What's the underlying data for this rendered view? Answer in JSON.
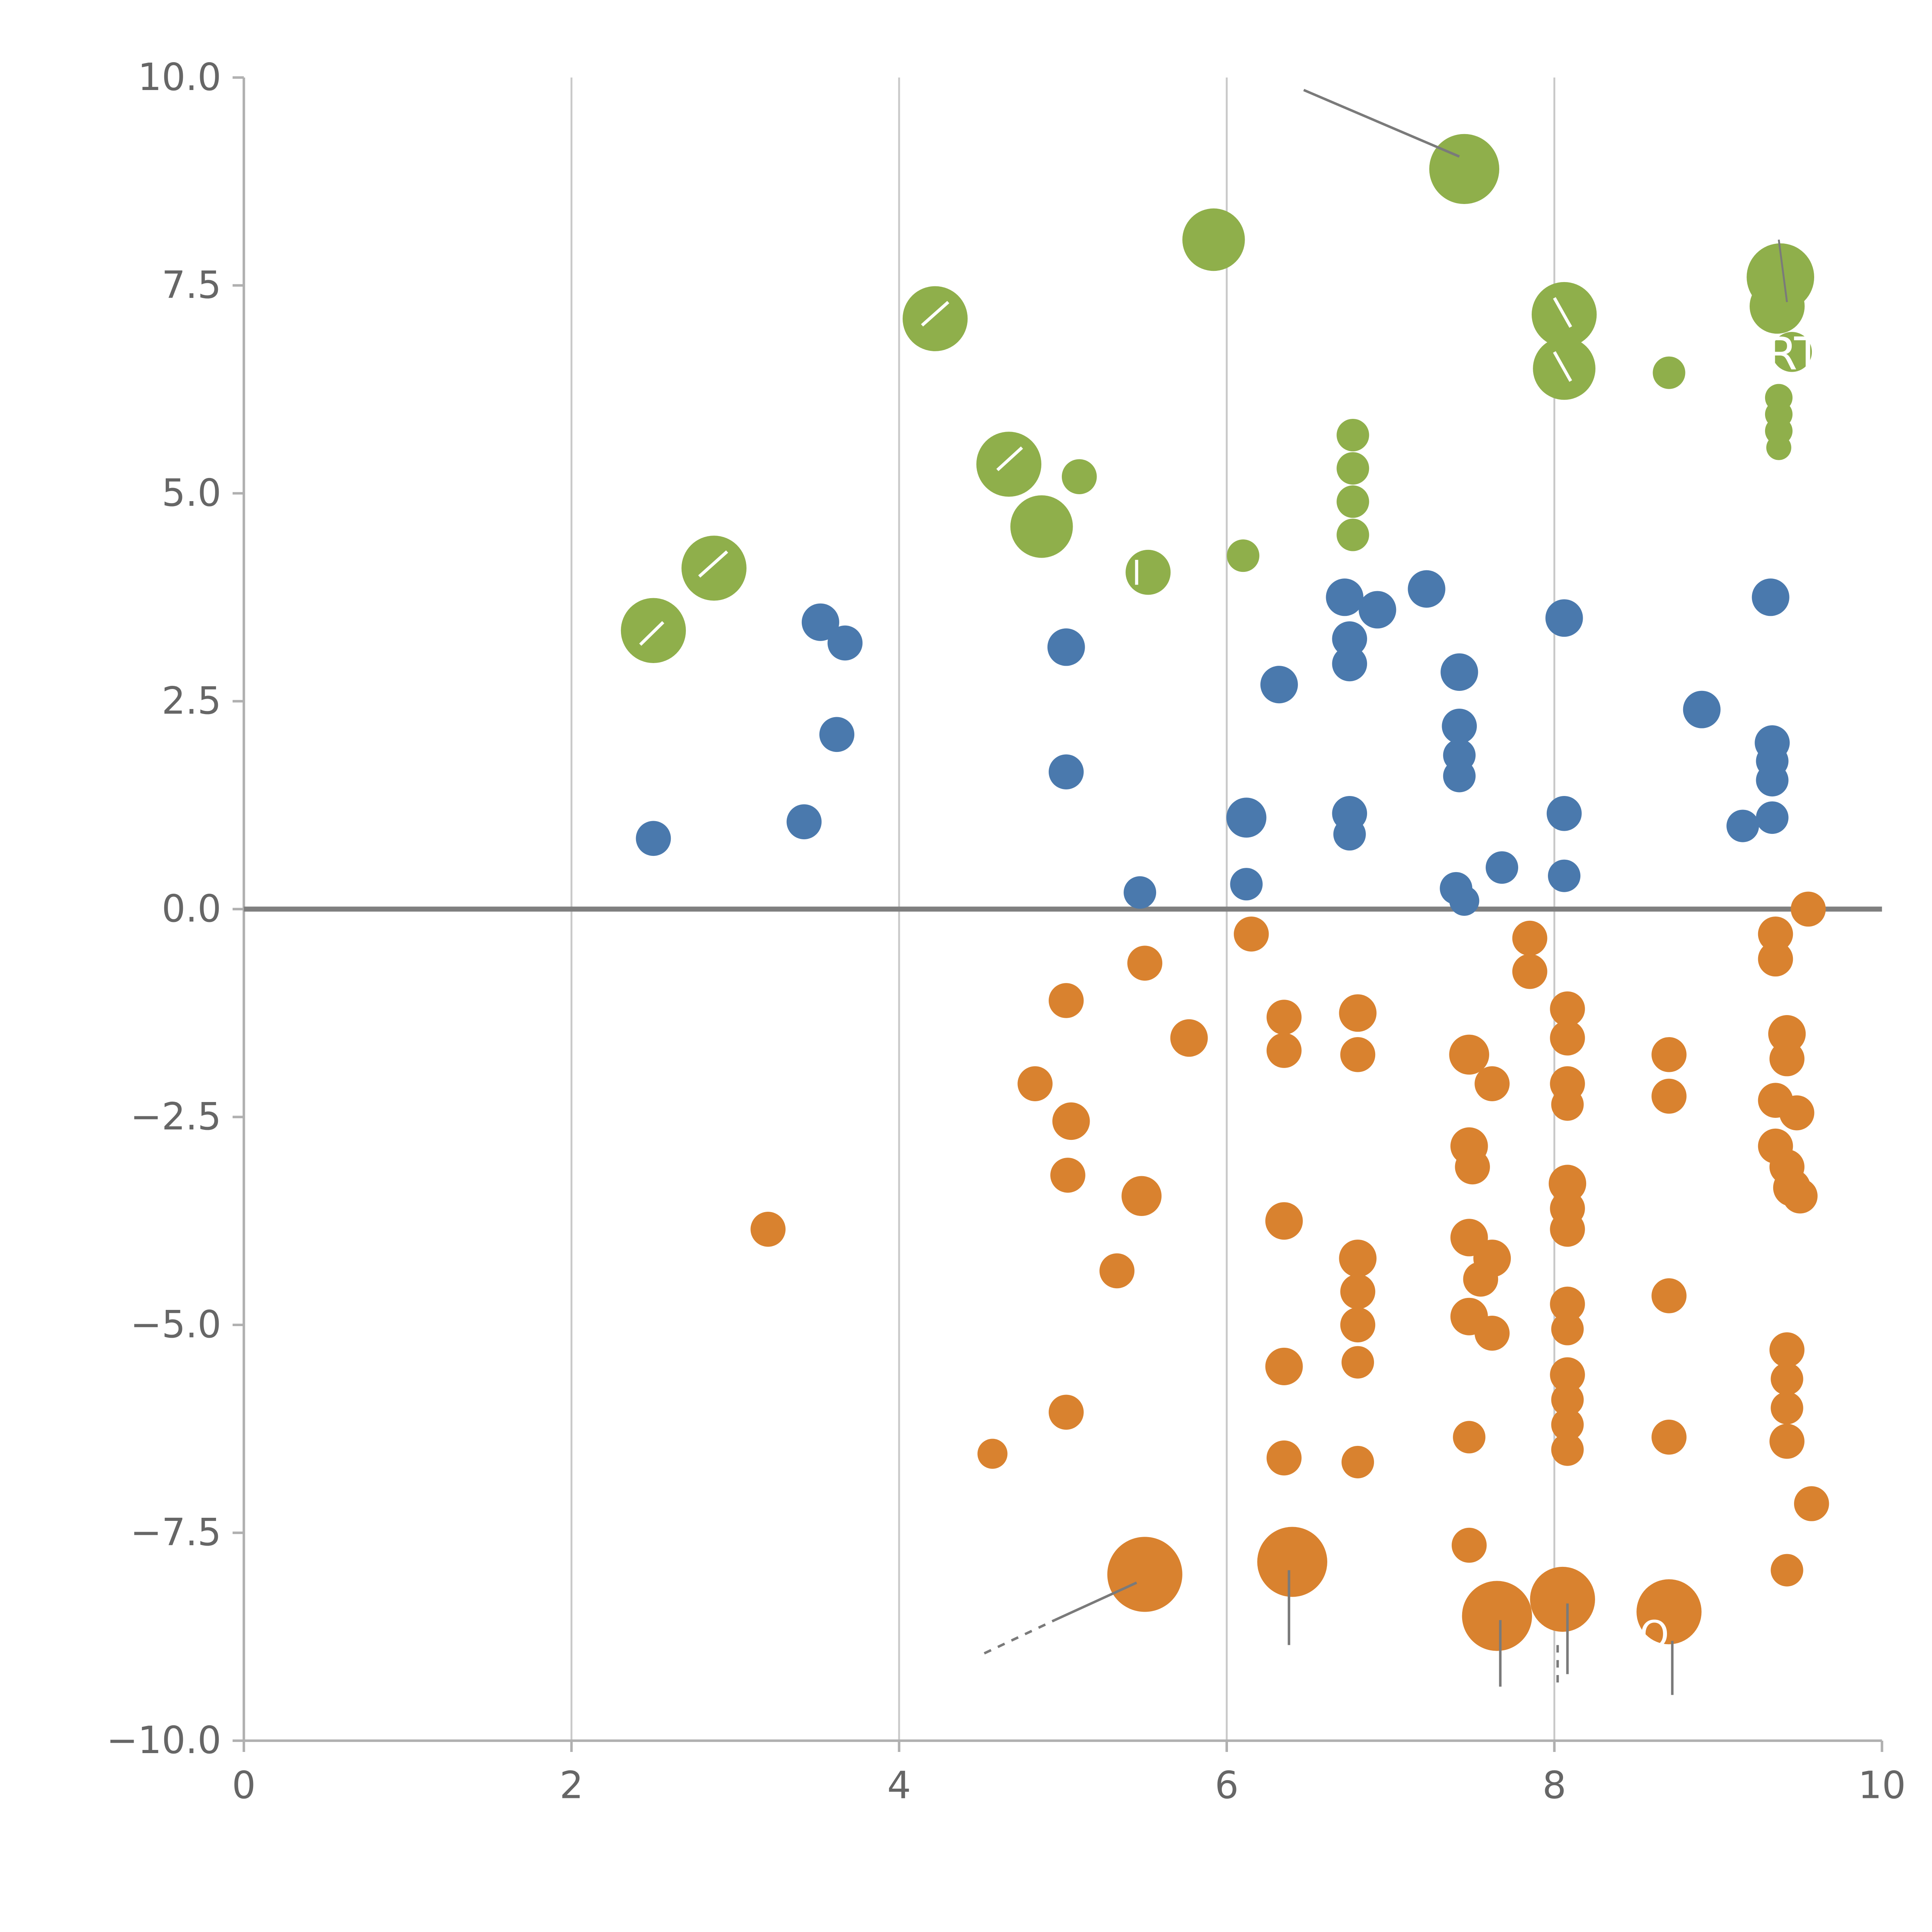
{
  "chart_data": {
    "type": "scatter",
    "title": "",
    "xlabel": "",
    "ylabel": "",
    "xlim": [
      0,
      10
    ],
    "ylim": [
      -10,
      10
    ],
    "x_tick_values": [
      0,
      2,
      4,
      6,
      8,
      10
    ],
    "x_tick_labels": [
      "0",
      "2",
      "4",
      "6",
      "8",
      "10"
    ],
    "y_tick_values": [
      10,
      7.5,
      5,
      2.5,
      0,
      -2.5,
      -5,
      -7.5,
      -10
    ],
    "y_tick_labels": [
      "10.0",
      "7.5",
      "5.0",
      "2.5",
      "0.0",
      "−2.5",
      "−5.0",
      "−7.5",
      "−10.0"
    ],
    "grid_vertical_at": [
      2,
      4,
      6,
      8
    ],
    "zero_line_y": 0,
    "legend": "none",
    "colors": {
      "green": "#8FAF4B",
      "blue": "#4A79AD",
      "orange": "#D9822F",
      "grid": "#c9c9c9",
      "spine": "#b0b0b0",
      "zero_line": "#7f7f7f",
      "tick_label": "#666666",
      "annotation_line": "#7a7a7a",
      "white": "#ffffff"
    },
    "series": [
      {
        "name": "green",
        "color_key": "green",
        "points": [
          [
            7.45,
            8.9,
            28
          ],
          [
            5.92,
            8.05,
            25
          ],
          [
            4.22,
            7.1,
            26
          ],
          [
            9.38,
            7.6,
            27
          ],
          [
            9.36,
            7.25,
            22
          ],
          [
            8.06,
            7.15,
            26
          ],
          [
            8.06,
            6.5,
            25
          ],
          [
            8.7,
            6.45,
            13
          ],
          [
            9.45,
            6.7,
            16
          ],
          [
            9.37,
            6.15,
            11
          ],
          [
            9.37,
            5.95,
            11
          ],
          [
            9.37,
            5.75,
            11
          ],
          [
            9.37,
            5.55,
            10
          ],
          [
            4.67,
            5.35,
            26
          ],
          [
            5.1,
            5.2,
            14
          ],
          [
            4.87,
            4.6,
            25
          ],
          [
            2.87,
            4.1,
            26
          ],
          [
            2.5,
            3.35,
            26
          ],
          [
            5.52,
            4.05,
            18
          ],
          [
            6.1,
            4.25,
            13
          ],
          [
            6.77,
            5.7,
            13
          ],
          [
            6.77,
            5.3,
            13
          ],
          [
            6.77,
            4.9,
            13
          ],
          [
            6.77,
            4.5,
            13
          ]
        ]
      },
      {
        "name": "blue",
        "color_key": "blue",
        "points": [
          [
            2.5,
            0.85,
            14
          ],
          [
            3.42,
            1.05,
            14
          ],
          [
            3.52,
            3.45,
            15
          ],
          [
            3.67,
            3.2,
            14
          ],
          [
            3.62,
            2.1,
            14
          ],
          [
            5.02,
            3.15,
            15
          ],
          [
            5.02,
            1.65,
            14
          ],
          [
            5.47,
            0.2,
            13
          ],
          [
            6.12,
            1.1,
            16
          ],
          [
            6.12,
            0.3,
            13
          ],
          [
            6.32,
            2.7,
            15
          ],
          [
            6.72,
            3.75,
            15
          ],
          [
            6.92,
            3.6,
            15
          ],
          [
            7.22,
            3.85,
            15
          ],
          [
            6.75,
            3.25,
            14
          ],
          [
            6.75,
            2.95,
            14
          ],
          [
            6.75,
            1.15,
            14
          ],
          [
            6.75,
            0.9,
            13
          ],
          [
            7.42,
            2.85,
            15
          ],
          [
            7.42,
            2.2,
            14
          ],
          [
            7.42,
            1.85,
            13
          ],
          [
            7.42,
            1.6,
            13
          ],
          [
            7.4,
            0.25,
            13
          ],
          [
            7.45,
            0.1,
            12
          ],
          [
            7.68,
            0.5,
            13
          ],
          [
            8.06,
            3.5,
            15
          ],
          [
            8.06,
            1.15,
            14
          ],
          [
            8.06,
            0.4,
            13
          ],
          [
            8.9,
            2.4,
            15
          ],
          [
            9.32,
            3.75,
            15
          ],
          [
            9.33,
            2.0,
            14
          ],
          [
            9.33,
            1.78,
            13
          ],
          [
            9.33,
            1.55,
            13
          ],
          [
            9.33,
            1.1,
            13
          ],
          [
            9.15,
            1.0,
            13
          ]
        ]
      },
      {
        "name": "orange",
        "color_key": "orange",
        "points": [
          [
            3.2,
            -3.85,
            14
          ],
          [
            4.57,
            -6.55,
            12
          ],
          [
            4.83,
            -2.1,
            14
          ],
          [
            5.02,
            -1.1,
            14
          ],
          [
            5.05,
            -2.55,
            15
          ],
          [
            5.03,
            -3.2,
            14
          ],
          [
            5.02,
            -6.05,
            14
          ],
          [
            5.33,
            -4.35,
            14
          ],
          [
            5.5,
            -0.65,
            14
          ],
          [
            5.48,
            -3.45,
            16
          ],
          [
            5.77,
            -1.55,
            15
          ],
          [
            5.5,
            -8.0,
            30
          ],
          [
            6.15,
            -0.3,
            14
          ],
          [
            6.35,
            -1.3,
            14
          ],
          [
            6.35,
            -1.7,
            14
          ],
          [
            6.35,
            -3.75,
            15
          ],
          [
            6.35,
            -5.5,
            15
          ],
          [
            6.35,
            -6.6,
            14
          ],
          [
            6.4,
            -7.85,
            28
          ],
          [
            6.8,
            -1.25,
            15
          ],
          [
            6.8,
            -1.75,
            14
          ],
          [
            6.8,
            -4.2,
            15
          ],
          [
            6.8,
            -4.6,
            14
          ],
          [
            6.8,
            -5.0,
            14
          ],
          [
            6.8,
            -5.45,
            13
          ],
          [
            6.8,
            -6.65,
            13
          ],
          [
            7.48,
            -1.75,
            16
          ],
          [
            7.62,
            -2.1,
            14
          ],
          [
            7.48,
            -2.85,
            15
          ],
          [
            7.5,
            -3.1,
            14
          ],
          [
            7.48,
            -3.95,
            15
          ],
          [
            7.62,
            -4.2,
            15
          ],
          [
            7.55,
            -4.45,
            14
          ],
          [
            7.48,
            -4.9,
            15
          ],
          [
            7.62,
            -5.1,
            14
          ],
          [
            7.48,
            -6.35,
            13
          ],
          [
            7.48,
            -7.65,
            14
          ],
          [
            7.65,
            -8.5,
            28
          ],
          [
            7.85,
            -0.35,
            14
          ],
          [
            7.85,
            -0.75,
            14
          ],
          [
            8.08,
            -1.2,
            14
          ],
          [
            8.08,
            -1.55,
            14
          ],
          [
            8.08,
            -2.1,
            14
          ],
          [
            8.08,
            -2.35,
            13
          ],
          [
            8.08,
            -3.3,
            15
          ],
          [
            8.08,
            -3.6,
            14
          ],
          [
            8.08,
            -3.85,
            14
          ],
          [
            8.08,
            -4.75,
            14
          ],
          [
            8.08,
            -5.05,
            13
          ],
          [
            8.08,
            -5.6,
            14
          ],
          [
            8.08,
            -5.9,
            13
          ],
          [
            8.08,
            -6.2,
            13
          ],
          [
            8.08,
            -6.5,
            13
          ],
          [
            8.05,
            -8.3,
            26
          ],
          [
            8.7,
            -1.75,
            14
          ],
          [
            8.7,
            -2.25,
            14
          ],
          [
            8.7,
            -4.65,
            14
          ],
          [
            8.7,
            -6.35,
            14
          ],
          [
            8.7,
            -8.45,
            26
          ],
          [
            9.35,
            -0.3,
            14
          ],
          [
            9.35,
            -0.6,
            14
          ],
          [
            9.42,
            -1.5,
            15
          ],
          [
            9.42,
            -1.8,
            14
          ],
          [
            9.35,
            -2.3,
            14
          ],
          [
            9.48,
            -2.45,
            14
          ],
          [
            9.35,
            -2.85,
            14
          ],
          [
            9.42,
            -3.1,
            14
          ],
          [
            9.45,
            -3.35,
            15
          ],
          [
            9.5,
            -3.45,
            14
          ],
          [
            9.55,
            0.0,
            14
          ],
          [
            9.42,
            -5.3,
            14
          ],
          [
            9.42,
            -5.65,
            13
          ],
          [
            9.42,
            -6.0,
            13
          ],
          [
            9.42,
            -6.4,
            14
          ],
          [
            9.57,
            -7.15,
            14
          ],
          [
            9.42,
            -7.95,
            13
          ]
        ]
      }
    ],
    "annotation_lines": [
      {
        "x1": 6.47,
        "y1": 9.85,
        "x2": 7.42,
        "y2": 9.05,
        "dashed": false,
        "width": 2
      },
      {
        "x1": 4.52,
        "y1": -8.95,
        "x2": 4.95,
        "y2": -8.55,
        "dashed": true,
        "width": 2
      },
      {
        "x1": 4.95,
        "y1": -8.55,
        "x2": 5.45,
        "y2": -8.1,
        "dashed": false,
        "width": 2
      },
      {
        "x1": 6.38,
        "y1": -7.95,
        "x2": 6.38,
        "y2": -8.85,
        "dashed": false,
        "width": 2
      },
      {
        "x1": 7.67,
        "y1": -8.55,
        "x2": 7.67,
        "y2": -9.35,
        "dashed": false,
        "width": 2
      },
      {
        "x1": 8.08,
        "y1": -8.35,
        "x2": 8.08,
        "y2": -9.2,
        "dashed": false,
        "width": 2
      },
      {
        "x1": 8.02,
        "y1": -8.85,
        "x2": 8.02,
        "y2": -9.3,
        "dashed": true,
        "width": 2
      },
      {
        "x1": 8.72,
        "y1": -8.8,
        "x2": 8.72,
        "y2": -9.45,
        "dashed": false,
        "width": 2
      },
      {
        "x1": 9.37,
        "y1": 8.05,
        "x2": 9.42,
        "y2": 7.3,
        "dashed": false,
        "width": 1.5
      }
    ],
    "white_marks": [
      {
        "x1": 4.3,
        "y1": 7.3,
        "x2": 4.14,
        "y2": 7.02
      },
      {
        "x1": 2.95,
        "y1": 4.3,
        "x2": 2.78,
        "y2": 4.0
      },
      {
        "x1": 2.42,
        "y1": 3.18,
        "x2": 2.56,
        "y2": 3.45
      },
      {
        "x1": 4.75,
        "y1": 5.55,
        "x2": 4.6,
        "y2": 5.28
      },
      {
        "x1": 8.0,
        "y1": 7.35,
        "x2": 8.1,
        "y2": 7.0
      },
      {
        "x1": 8.0,
        "y1": 6.7,
        "x2": 8.1,
        "y2": 6.35
      },
      {
        "x1": 5.45,
        "y1": 4.2,
        "x2": 5.45,
        "y2": 3.9
      }
    ],
    "text_annotations": [
      {
        "x": 9.08,
        "y": 6.68,
        "text": "GRT",
        "size": 36
      },
      {
        "x": 8.52,
        "y": -8.72,
        "text": "O",
        "size": 30
      }
    ]
  }
}
